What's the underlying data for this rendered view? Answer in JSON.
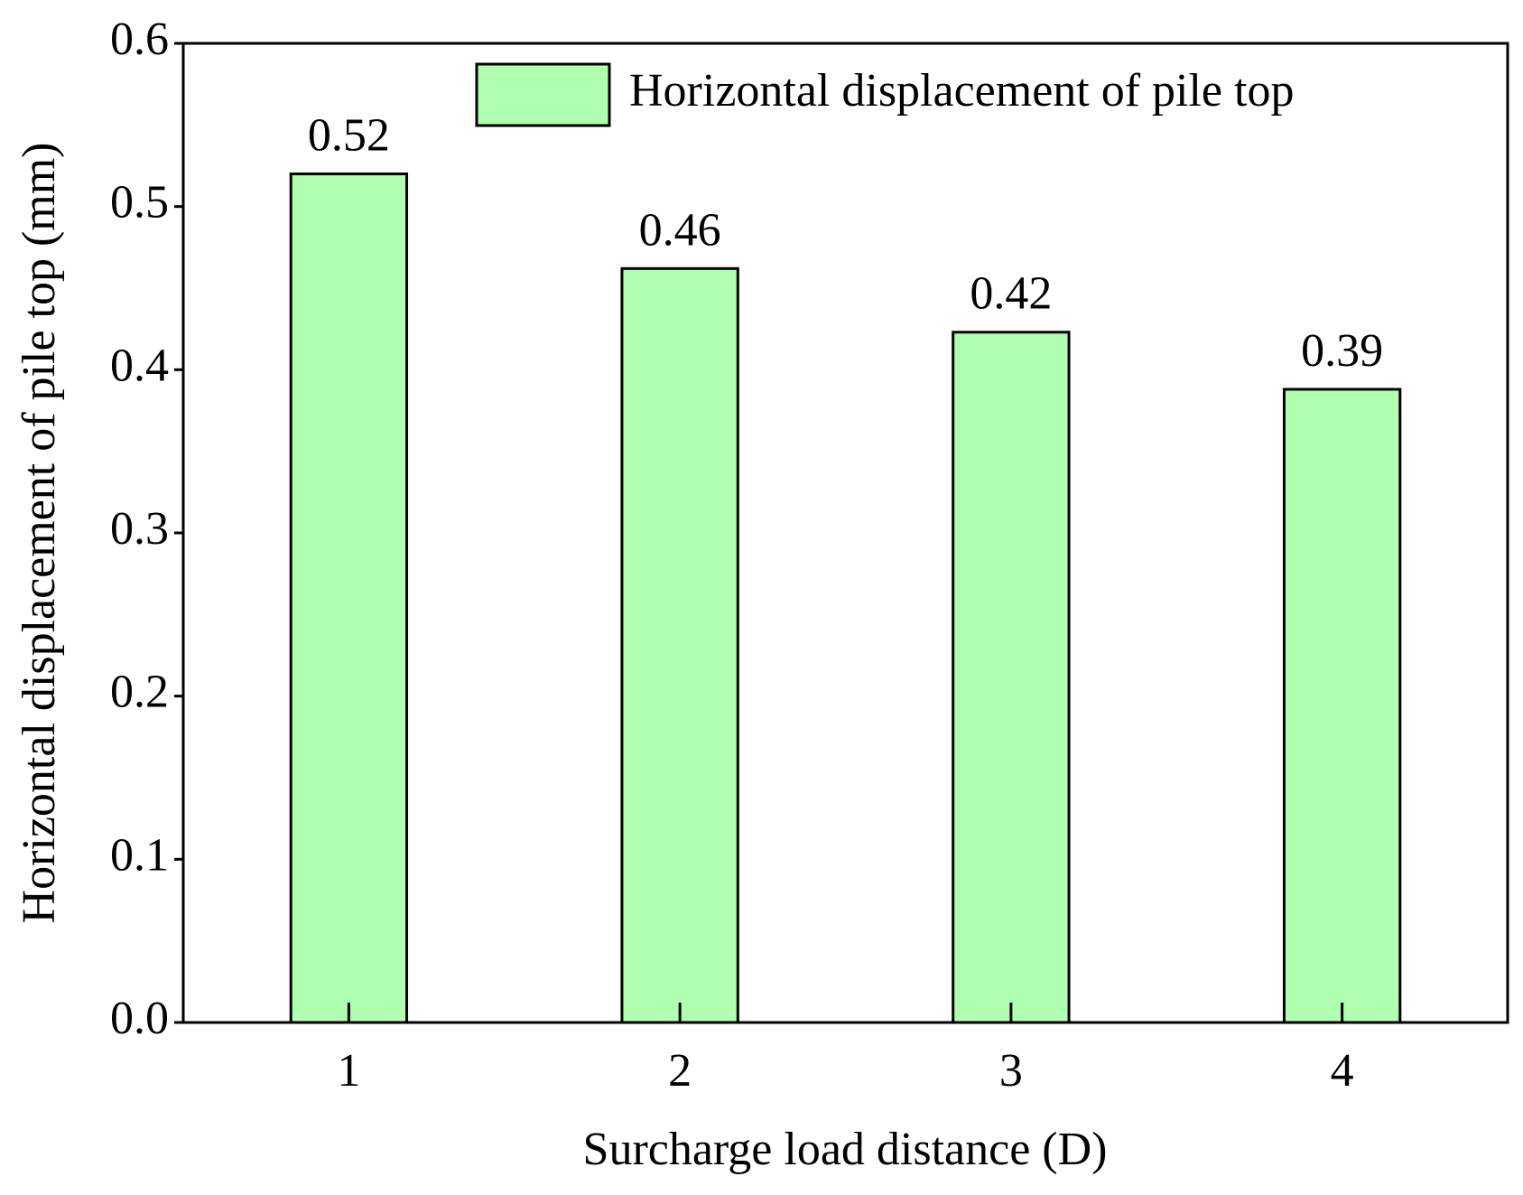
{
  "chart_data": {
    "type": "bar",
    "x_label": "Surcharge load distance (D)",
    "y_label": "Horizontal displacement of pile top (mm)",
    "categories": [
      "1",
      "2",
      "3",
      "4"
    ],
    "series": [
      {
        "name": "Horizontal displacement of pile top",
        "color": "#b0ffb0",
        "values": [
          0.52,
          0.462,
          0.423,
          0.388
        ],
        "value_labels": [
          "0.52",
          "0.46",
          "0.42",
          "0.39"
        ]
      }
    ],
    "ylim": [
      0,
      0.6
    ],
    "yticks": [
      {
        "value": 0,
        "label": "0.0"
      },
      0.1,
      0.2,
      0.3,
      0.4,
      0.5,
      0.6
    ],
    "grid": false,
    "legend": "upper right"
  }
}
